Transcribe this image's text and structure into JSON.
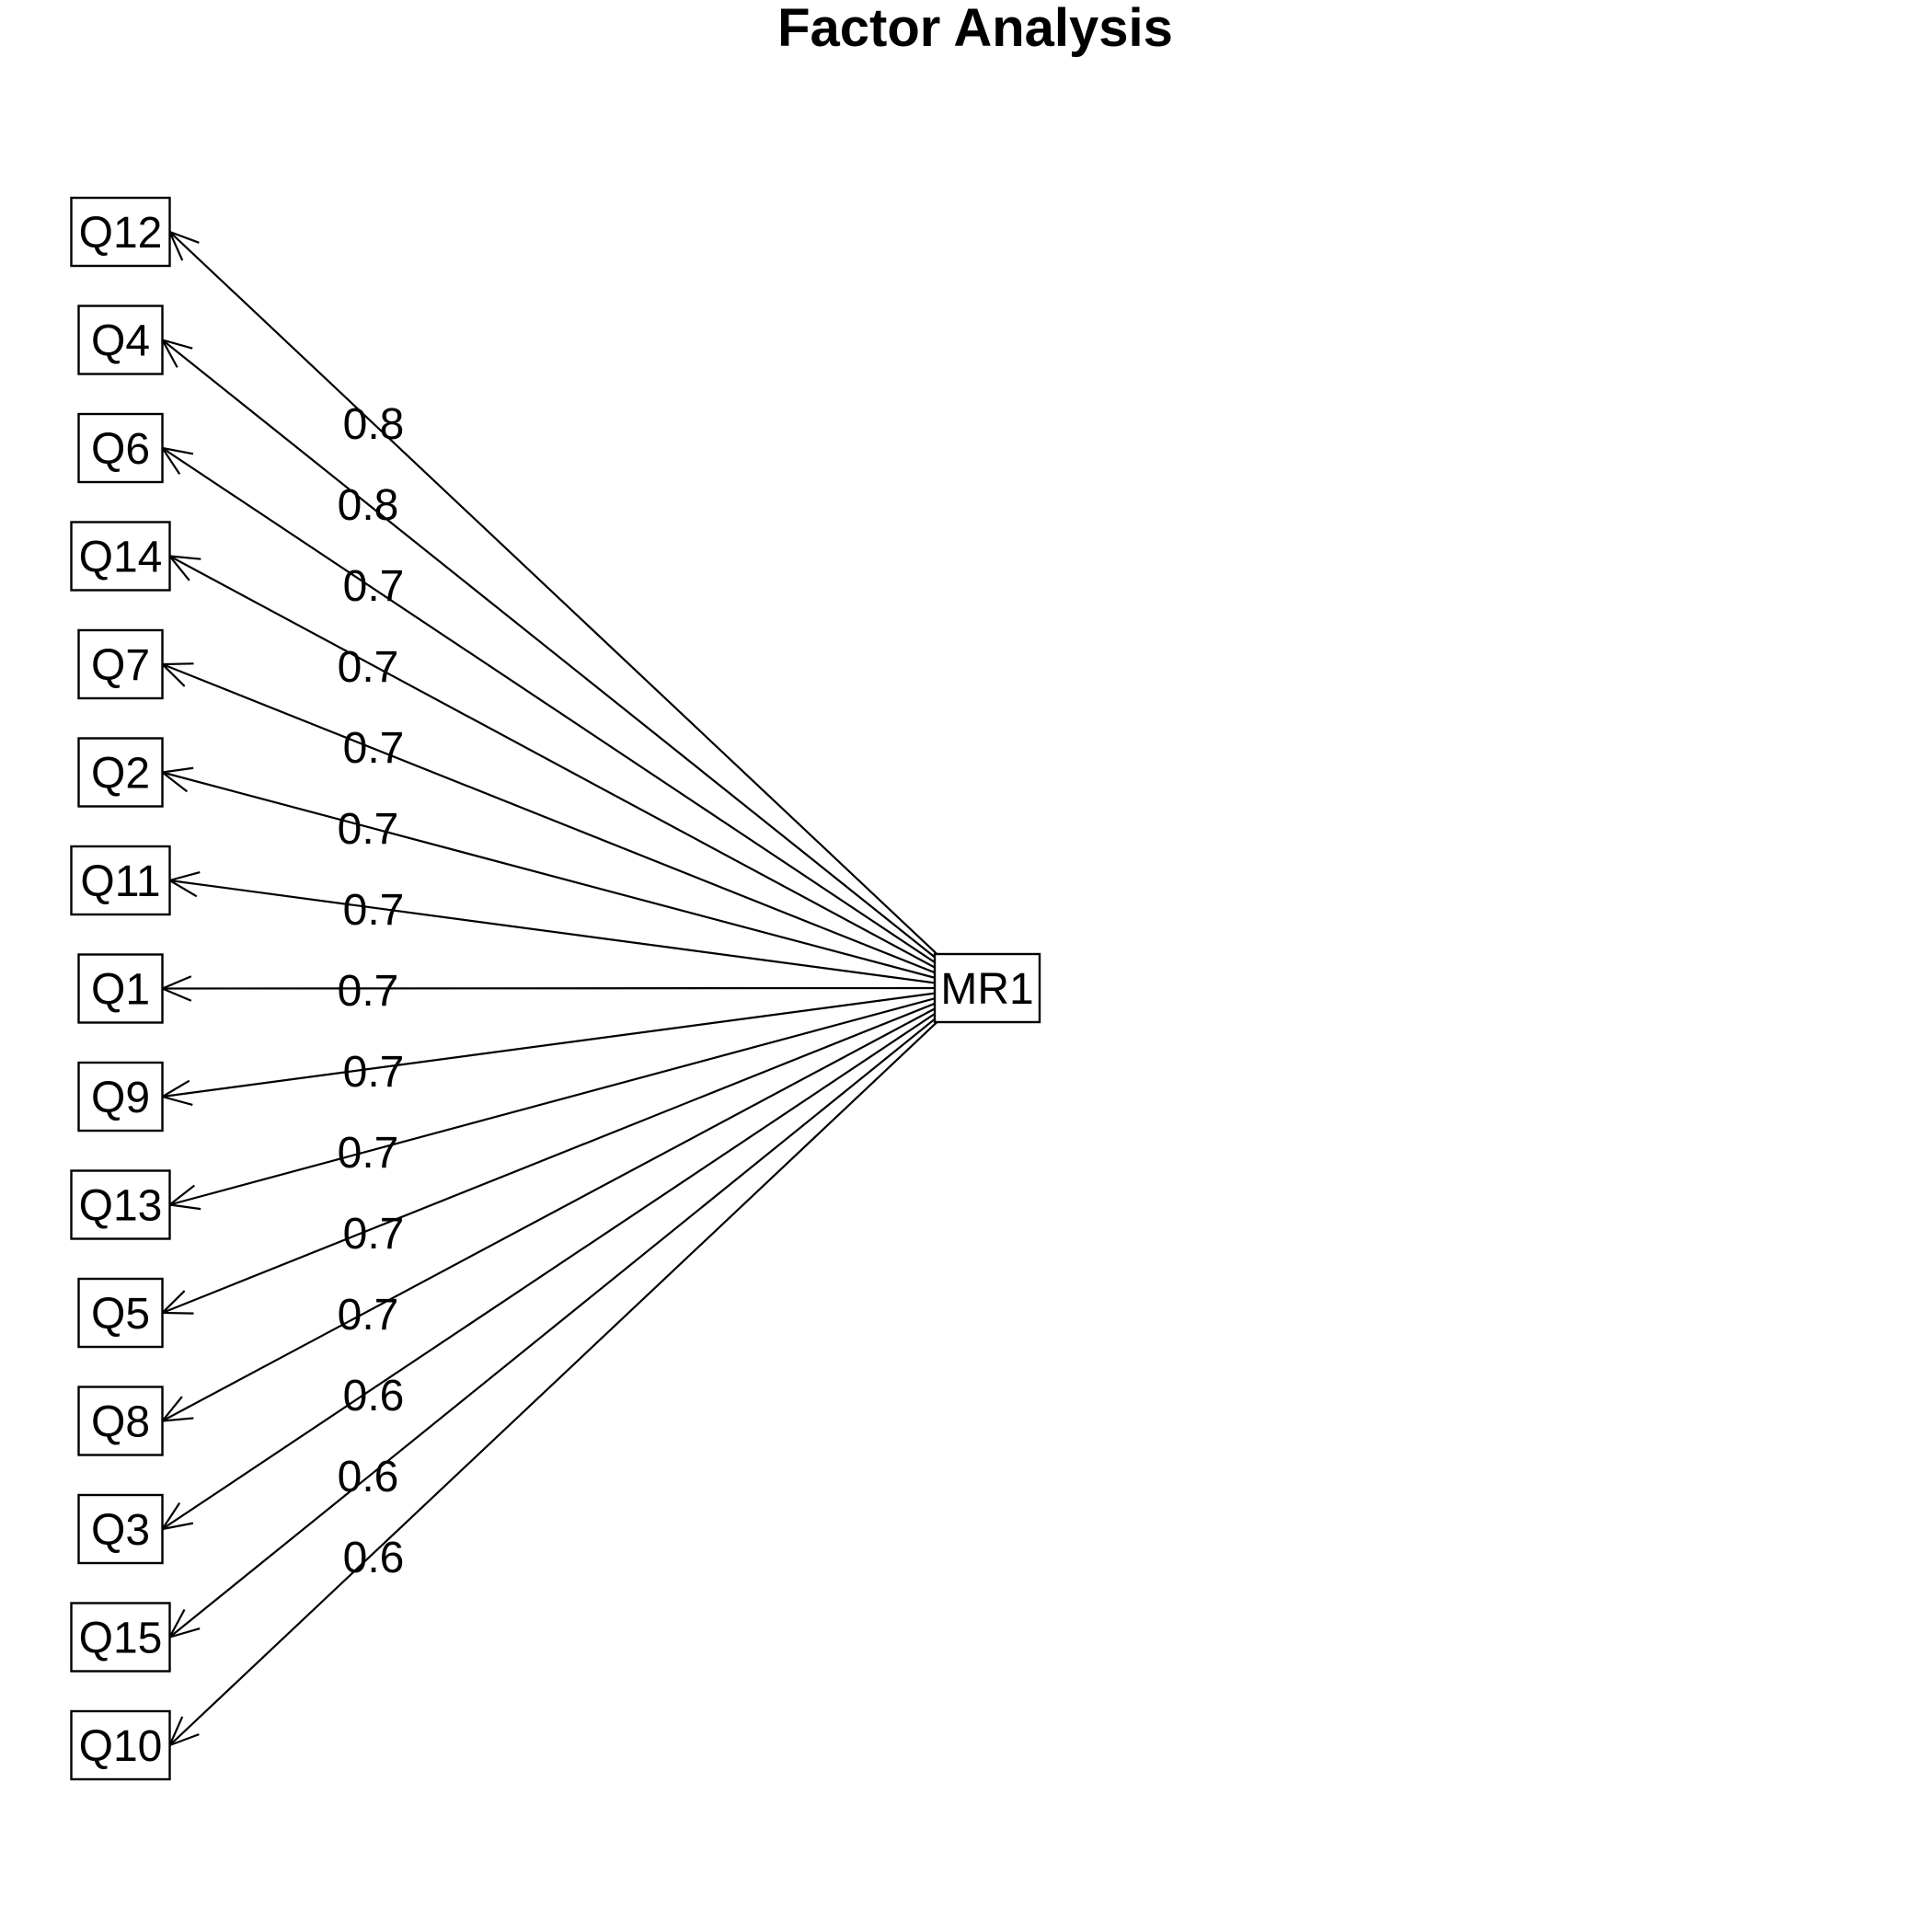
{
  "title": "Factor Analysis",
  "factor": {
    "label": "MR1"
  },
  "loadings": [
    {
      "item": "Q12",
      "value": "0.8"
    },
    {
      "item": "Q4",
      "value": "0.8"
    },
    {
      "item": "Q6",
      "value": "0.7"
    },
    {
      "item": "Q14",
      "value": "0.7"
    },
    {
      "item": "Q7",
      "value": "0.7"
    },
    {
      "item": "Q2",
      "value": "0.7"
    },
    {
      "item": "Q11",
      "value": "0.7"
    },
    {
      "item": "Q1",
      "value": "0.7"
    },
    {
      "item": "Q9",
      "value": "0.7"
    },
    {
      "item": "Q13",
      "value": "0.7"
    },
    {
      "item": "Q5",
      "value": "0.7"
    },
    {
      "item": "Q8",
      "value": "0.7"
    },
    {
      "item": "Q3",
      "value": "0.6"
    },
    {
      "item": "Q15",
      "value": "0.6"
    },
    {
      "item": "Q10",
      "value": "0.6"
    }
  ]
}
